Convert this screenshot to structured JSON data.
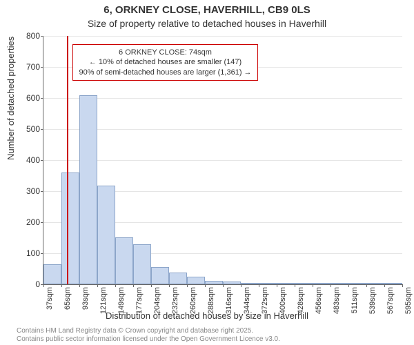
{
  "title": "6, ORKNEY CLOSE, HAVERHILL, CB9 0LS",
  "subtitle": "Size of property relative to detached houses in Haverhill",
  "y_axis_label": "Number of detached properties",
  "x_axis_label": "Distribution of detached houses by size in Haverhill",
  "footer_line1": "Contains HM Land Registry data © Crown copyright and database right 2025.",
  "footer_line2": "Contains public sector information licensed under the Open Government Licence v3.0.",
  "chart": {
    "type": "histogram",
    "background_color": "#ffffff",
    "grid_color": "#e5e5e5",
    "bar_fill": "#c9d8ef",
    "bar_stroke": "#8ca5c9",
    "marker_color": "#cc0000",
    "ylim": [
      0,
      800
    ],
    "ytick_step": 100,
    "y_ticks": [
      0,
      100,
      200,
      300,
      400,
      500,
      600,
      700,
      800
    ],
    "x_ticks": [
      "37sqm",
      "65sqm",
      "93sqm",
      "121sqm",
      "149sqm",
      "177sqm",
      "204sqm",
      "232sqm",
      "260sqm",
      "288sqm",
      "316sqm",
      "344sqm",
      "372sqm",
      "400sqm",
      "428sqm",
      "456sqm",
      "483sqm",
      "511sqm",
      "539sqm",
      "567sqm",
      "595sqm"
    ],
    "bars": [
      {
        "i": 0,
        "v": 65
      },
      {
        "i": 1,
        "v": 360
      },
      {
        "i": 2,
        "v": 608
      },
      {
        "i": 3,
        "v": 318
      },
      {
        "i": 4,
        "v": 152
      },
      {
        "i": 5,
        "v": 128
      },
      {
        "i": 6,
        "v": 55
      },
      {
        "i": 7,
        "v": 38
      },
      {
        "i": 8,
        "v": 25
      },
      {
        "i": 9,
        "v": 12
      },
      {
        "i": 10,
        "v": 10
      },
      {
        "i": 11,
        "v": 5
      },
      {
        "i": 12,
        "v": 4
      },
      {
        "i": 13,
        "v": 3
      },
      {
        "i": 14,
        "v": 2
      },
      {
        "i": 15,
        "v": 2
      },
      {
        "i": 16,
        "v": 0
      },
      {
        "i": 17,
        "v": 2
      },
      {
        "i": 18,
        "v": 0
      },
      {
        "i": 19,
        "v": 1
      }
    ],
    "marker_position_sqm": 74,
    "x_range": [
      37,
      595
    ],
    "callout": {
      "line1": "6 ORKNEY CLOSE: 74sqm",
      "line2": "← 10% of detached houses are smaller (147)",
      "line3": "90% of semi-detached houses are larger (1,361) →"
    },
    "label_fontsize": 13,
    "tick_fontsize": 11
  }
}
